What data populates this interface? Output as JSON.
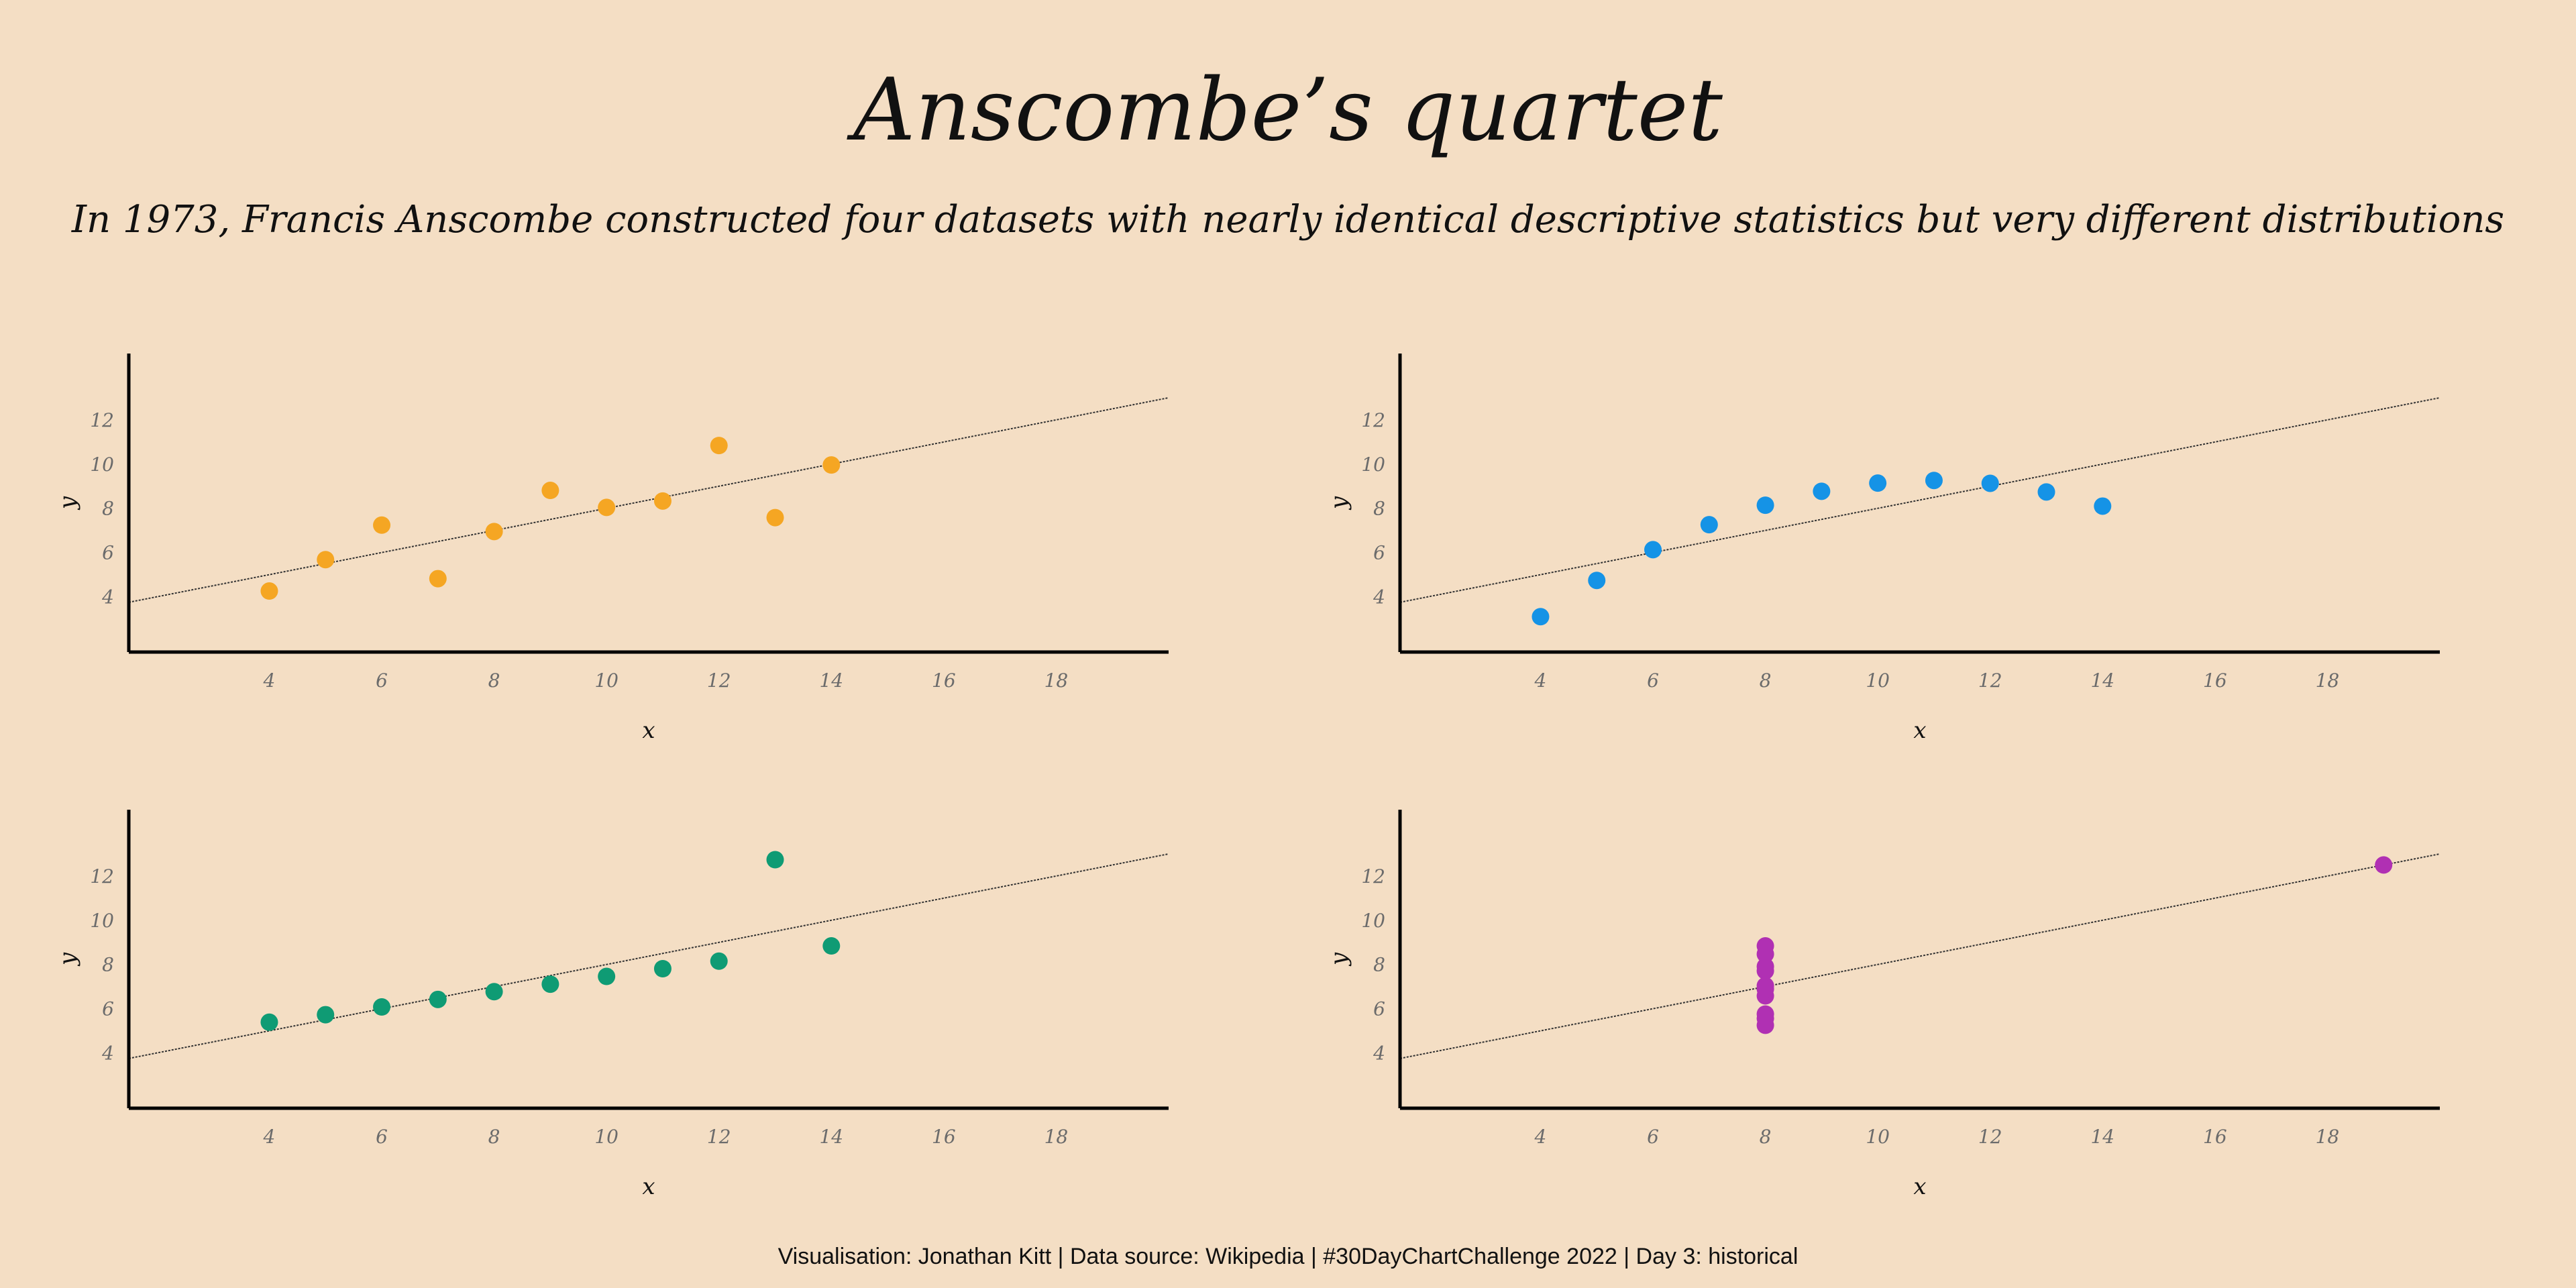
{
  "page": {
    "title": "Anscombe’s quartet",
    "subtitle": "In 1973, Francis Anscombe constructed four datasets with nearly identical descriptive statistics but very different distributions",
    "caption": "Visualisation: Jonathan Kitt | Data source: Wikipedia | #30DayChartChallenge 2022 | Day 3: historical"
  },
  "chart_data": [
    {
      "type": "scatter",
      "xlabel": "x",
      "ylabel": "y",
      "xlim": [
        1.5,
        20
      ],
      "ylim": [
        1.5,
        15
      ],
      "xticks": [
        4,
        6,
        8,
        10,
        12,
        14,
        16,
        18
      ],
      "yticks": [
        4,
        6,
        8,
        10,
        12
      ],
      "grid": false,
      "color": "#f5a623",
      "fit": {
        "intercept": 3.0,
        "slope": 0.5
      },
      "points": [
        {
          "x": 10,
          "y": 8.04
        },
        {
          "x": 8,
          "y": 6.95
        },
        {
          "x": 13,
          "y": 7.58
        },
        {
          "x": 9,
          "y": 8.81
        },
        {
          "x": 11,
          "y": 8.33
        },
        {
          "x": 14,
          "y": 9.96
        },
        {
          "x": 6,
          "y": 7.24
        },
        {
          "x": 4,
          "y": 4.26
        },
        {
          "x": 12,
          "y": 10.84
        },
        {
          "x": 7,
          "y": 4.82
        },
        {
          "x": 5,
          "y": 5.68
        }
      ]
    },
    {
      "type": "scatter",
      "xlabel": "x",
      "ylabel": "y",
      "xlim": [
        1.5,
        20
      ],
      "ylim": [
        1.5,
        15
      ],
      "xticks": [
        4,
        6,
        8,
        10,
        12,
        14,
        16,
        18
      ],
      "yticks": [
        4,
        6,
        8,
        10,
        12
      ],
      "grid": false,
      "color": "#1593e6",
      "fit": {
        "intercept": 3.0,
        "slope": 0.5
      },
      "points": [
        {
          "x": 10,
          "y": 9.14
        },
        {
          "x": 8,
          "y": 8.14
        },
        {
          "x": 13,
          "y": 8.74
        },
        {
          "x": 9,
          "y": 8.77
        },
        {
          "x": 11,
          "y": 9.26
        },
        {
          "x": 14,
          "y": 8.1
        },
        {
          "x": 6,
          "y": 6.13
        },
        {
          "x": 4,
          "y": 3.1
        },
        {
          "x": 12,
          "y": 9.13
        },
        {
          "x": 7,
          "y": 7.26
        },
        {
          "x": 5,
          "y": 4.74
        }
      ]
    },
    {
      "type": "scatter",
      "xlabel": "x",
      "ylabel": "y",
      "xlim": [
        1.5,
        20
      ],
      "ylim": [
        1.5,
        15
      ],
      "xticks": [
        4,
        6,
        8,
        10,
        12,
        14,
        16,
        18
      ],
      "yticks": [
        4,
        6,
        8,
        10,
        12
      ],
      "grid": false,
      "color": "#0f9b74",
      "fit": {
        "intercept": 3.0,
        "slope": 0.5
      },
      "points": [
        {
          "x": 10,
          "y": 7.46
        },
        {
          "x": 8,
          "y": 6.77
        },
        {
          "x": 13,
          "y": 12.74
        },
        {
          "x": 9,
          "y": 7.11
        },
        {
          "x": 11,
          "y": 7.81
        },
        {
          "x": 14,
          "y": 8.84
        },
        {
          "x": 6,
          "y": 6.08
        },
        {
          "x": 4,
          "y": 5.39
        },
        {
          "x": 12,
          "y": 8.15
        },
        {
          "x": 7,
          "y": 6.42
        },
        {
          "x": 5,
          "y": 5.73
        }
      ]
    },
    {
      "type": "scatter",
      "xlabel": "x",
      "ylabel": "y",
      "xlim": [
        1.5,
        20
      ],
      "ylim": [
        1.5,
        15
      ],
      "xticks": [
        4,
        6,
        8,
        10,
        12,
        14,
        16,
        18
      ],
      "yticks": [
        4,
        6,
        8,
        10,
        12
      ],
      "grid": false,
      "color": "#b030b3",
      "fit": {
        "intercept": 3.0,
        "slope": 0.5
      },
      "points": [
        {
          "x": 8,
          "y": 6.58
        },
        {
          "x": 8,
          "y": 5.76
        },
        {
          "x": 8,
          "y": 7.71
        },
        {
          "x": 8,
          "y": 8.84
        },
        {
          "x": 8,
          "y": 8.47
        },
        {
          "x": 8,
          "y": 7.04
        },
        {
          "x": 8,
          "y": 5.25
        },
        {
          "x": 19,
          "y": 12.5
        },
        {
          "x": 8,
          "y": 5.56
        },
        {
          "x": 8,
          "y": 7.91
        },
        {
          "x": 8,
          "y": 6.89
        }
      ]
    }
  ]
}
